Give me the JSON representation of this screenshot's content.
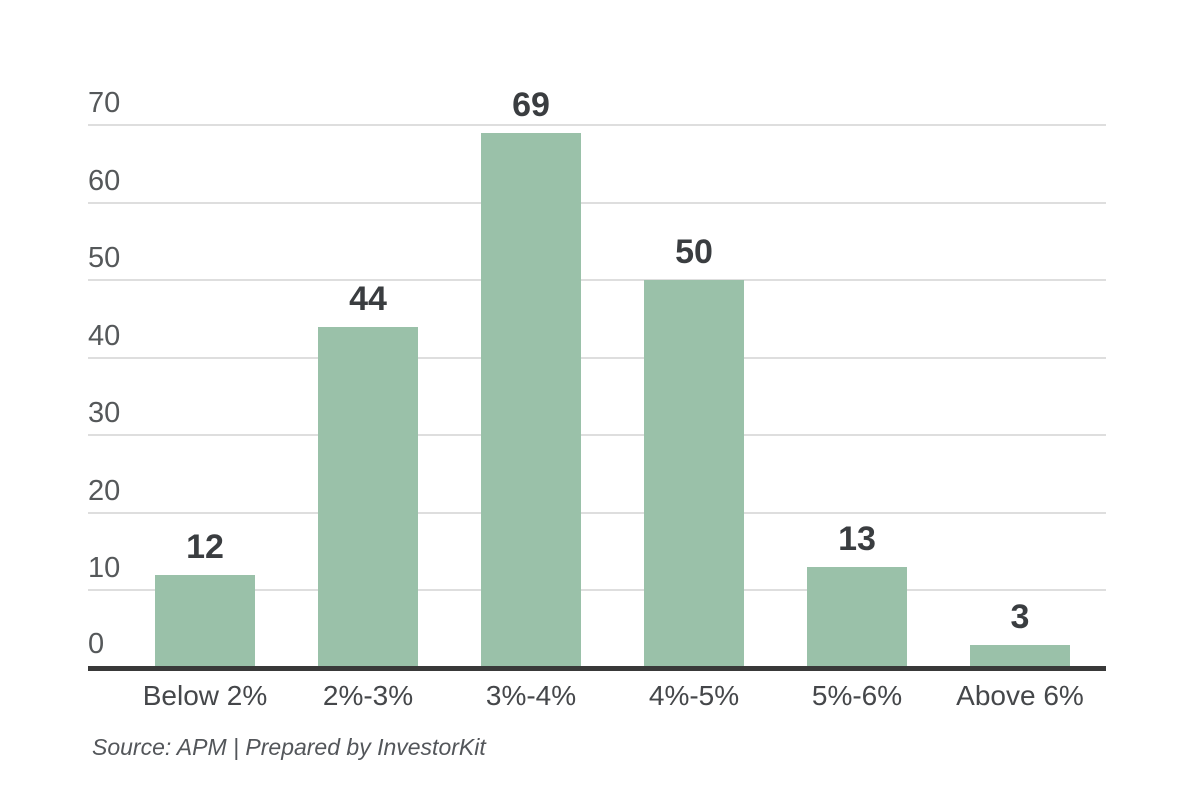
{
  "chart_data": {
    "type": "bar",
    "categories": [
      "Below 2%",
      "2%-3%",
      "3%-4%",
      "4%-5%",
      "5%-6%",
      "Above 6%"
    ],
    "values": [
      12,
      44,
      69,
      50,
      13,
      3
    ],
    "value_labels": [
      "12",
      "44",
      "69",
      "50",
      "13",
      "3"
    ],
    "title": "",
    "xlabel": "",
    "ylabel": "",
    "yticks": [
      0,
      10,
      20,
      30,
      40,
      50,
      60,
      70
    ],
    "ytick_labels": [
      "0",
      "10",
      "20",
      "30",
      "40",
      "50",
      "60",
      "70"
    ],
    "ylim": [
      0,
      70
    ],
    "grid": "horizontal",
    "legend_position": "none",
    "bar_color": "#9ac1a9",
    "source_note": "Source: APM | Prepared by InvestorKit"
  },
  "colors": {
    "background": "#ffffff",
    "bar": "#9ac1a9",
    "gridline": "#dedede",
    "axis_line": "#393939",
    "ytick_label": "#55585a",
    "xtick_label": "#45474a",
    "value_label": "#3a3d40",
    "source_text": "#53565a"
  },
  "footer": {
    "source_note": "Source: APM | Prepared by InvestorKit"
  }
}
